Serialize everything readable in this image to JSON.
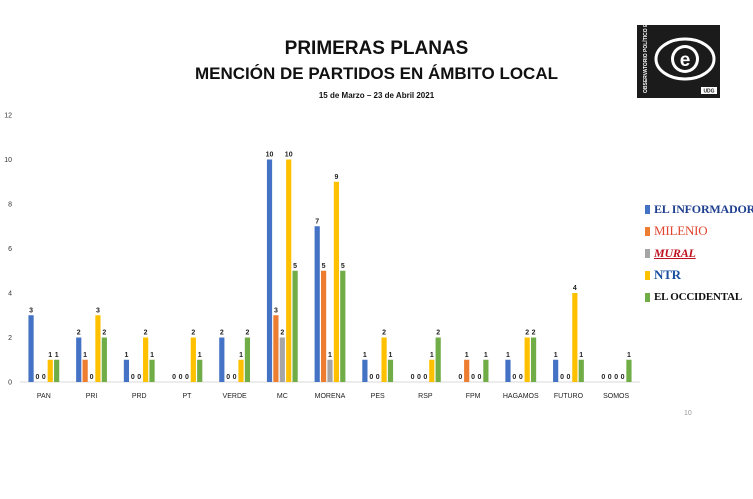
{
  "header": {
    "title": "PRIMERAS PLANAS",
    "subtitle": "MENCIÓN DE PARTIDOS EN ÁMBITO LOCAL",
    "date_range": "15 de Marzo – 23 de Abril 2021"
  },
  "logo": {
    "side_text": "OBSERVATORIO POLÍTICO ELECTORAL",
    "bottom_text": "UDG",
    "letter": "e"
  },
  "page_number": "10",
  "colors": {
    "EL INFORMADOR": "#4472C4",
    "MILENIO": "#ED7D31",
    "MURAL": "#A5A5A5",
    "NTR": "#FFC000",
    "EL OCCIDENTAL": "#70AD47"
  },
  "chart_data": {
    "type": "bar",
    "categories": [
      "PAN",
      "PRI",
      "PRD",
      "PT",
      "VERDE",
      "MC",
      "MORENA",
      "PES",
      "RSP",
      "FPM",
      "HAGAMOS",
      "FUTURO",
      "SOMOS"
    ],
    "series": [
      {
        "name": "EL INFORMADOR",
        "values": [
          3,
          2,
          1,
          0,
          2,
          10,
          7,
          1,
          0,
          0,
          1,
          1,
          0
        ]
      },
      {
        "name": "MILENIO",
        "values": [
          0,
          1,
          0,
          0,
          0,
          3,
          5,
          0,
          0,
          1,
          0,
          0,
          0
        ]
      },
      {
        "name": "MURAL",
        "values": [
          0,
          0,
          0,
          0,
          0,
          2,
          1,
          0,
          0,
          0,
          0,
          0,
          0
        ]
      },
      {
        "name": "NTR",
        "values": [
          1,
          3,
          2,
          2,
          1,
          10,
          9,
          2,
          1,
          0,
          2,
          4,
          0
        ]
      },
      {
        "name": "EL OCCIDENTAL",
        "values": [
          1,
          2,
          1,
          1,
          2,
          5,
          5,
          1,
          2,
          1,
          2,
          1,
          1
        ]
      }
    ],
    "ylim": [
      0,
      12
    ],
    "yticks": [
      "0",
      "2",
      "4",
      "6",
      "8",
      "10",
      "12"
    ],
    "legend_position": "right",
    "grid": false
  }
}
